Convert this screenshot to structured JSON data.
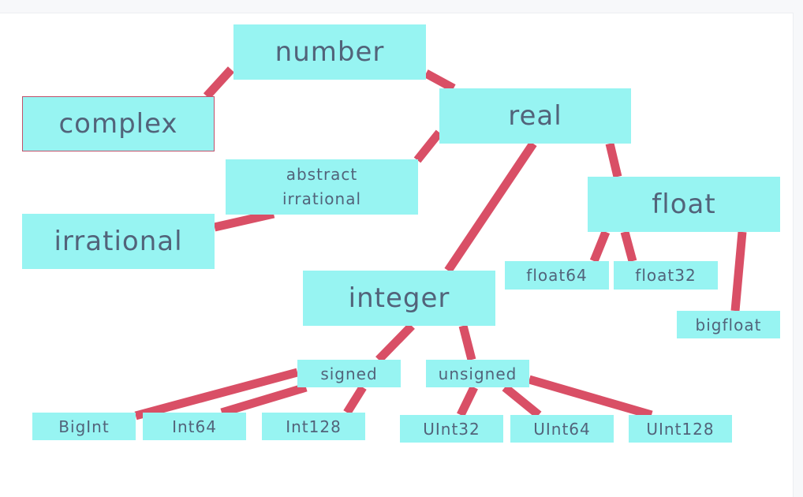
{
  "diagram": {
    "edge_color": "#d94f66",
    "node_color": "#97f4f2",
    "text_color": "#52637a",
    "nodes": {
      "number": "number",
      "complex": "complex",
      "real": "real",
      "abstract_irrational": "abstract\nirrational",
      "irrational": "irrational",
      "float": "float",
      "integer": "integer",
      "float64": "float64",
      "float32": "float32",
      "bigfloat": "bigfloat",
      "signed": "signed",
      "unsigned": "unsigned",
      "bigint": "BigInt",
      "int64": "Int64",
      "int128": "Int128",
      "uint32": "UInt32",
      "uint64": "UInt64",
      "uint128": "UInt128"
    },
    "edges": [
      [
        "number",
        "complex"
      ],
      [
        "number",
        "real"
      ],
      [
        "real",
        "abstract_irrational"
      ],
      [
        "abstract_irrational",
        "irrational"
      ],
      [
        "real",
        "float"
      ],
      [
        "real",
        "integer"
      ],
      [
        "float",
        "float64"
      ],
      [
        "float",
        "float32"
      ],
      [
        "float",
        "bigfloat"
      ],
      [
        "integer",
        "signed"
      ],
      [
        "integer",
        "unsigned"
      ],
      [
        "signed",
        "bigint"
      ],
      [
        "signed",
        "int64"
      ],
      [
        "signed",
        "int128"
      ],
      [
        "unsigned",
        "uint32"
      ],
      [
        "unsigned",
        "uint64"
      ],
      [
        "unsigned",
        "uint128"
      ]
    ]
  }
}
